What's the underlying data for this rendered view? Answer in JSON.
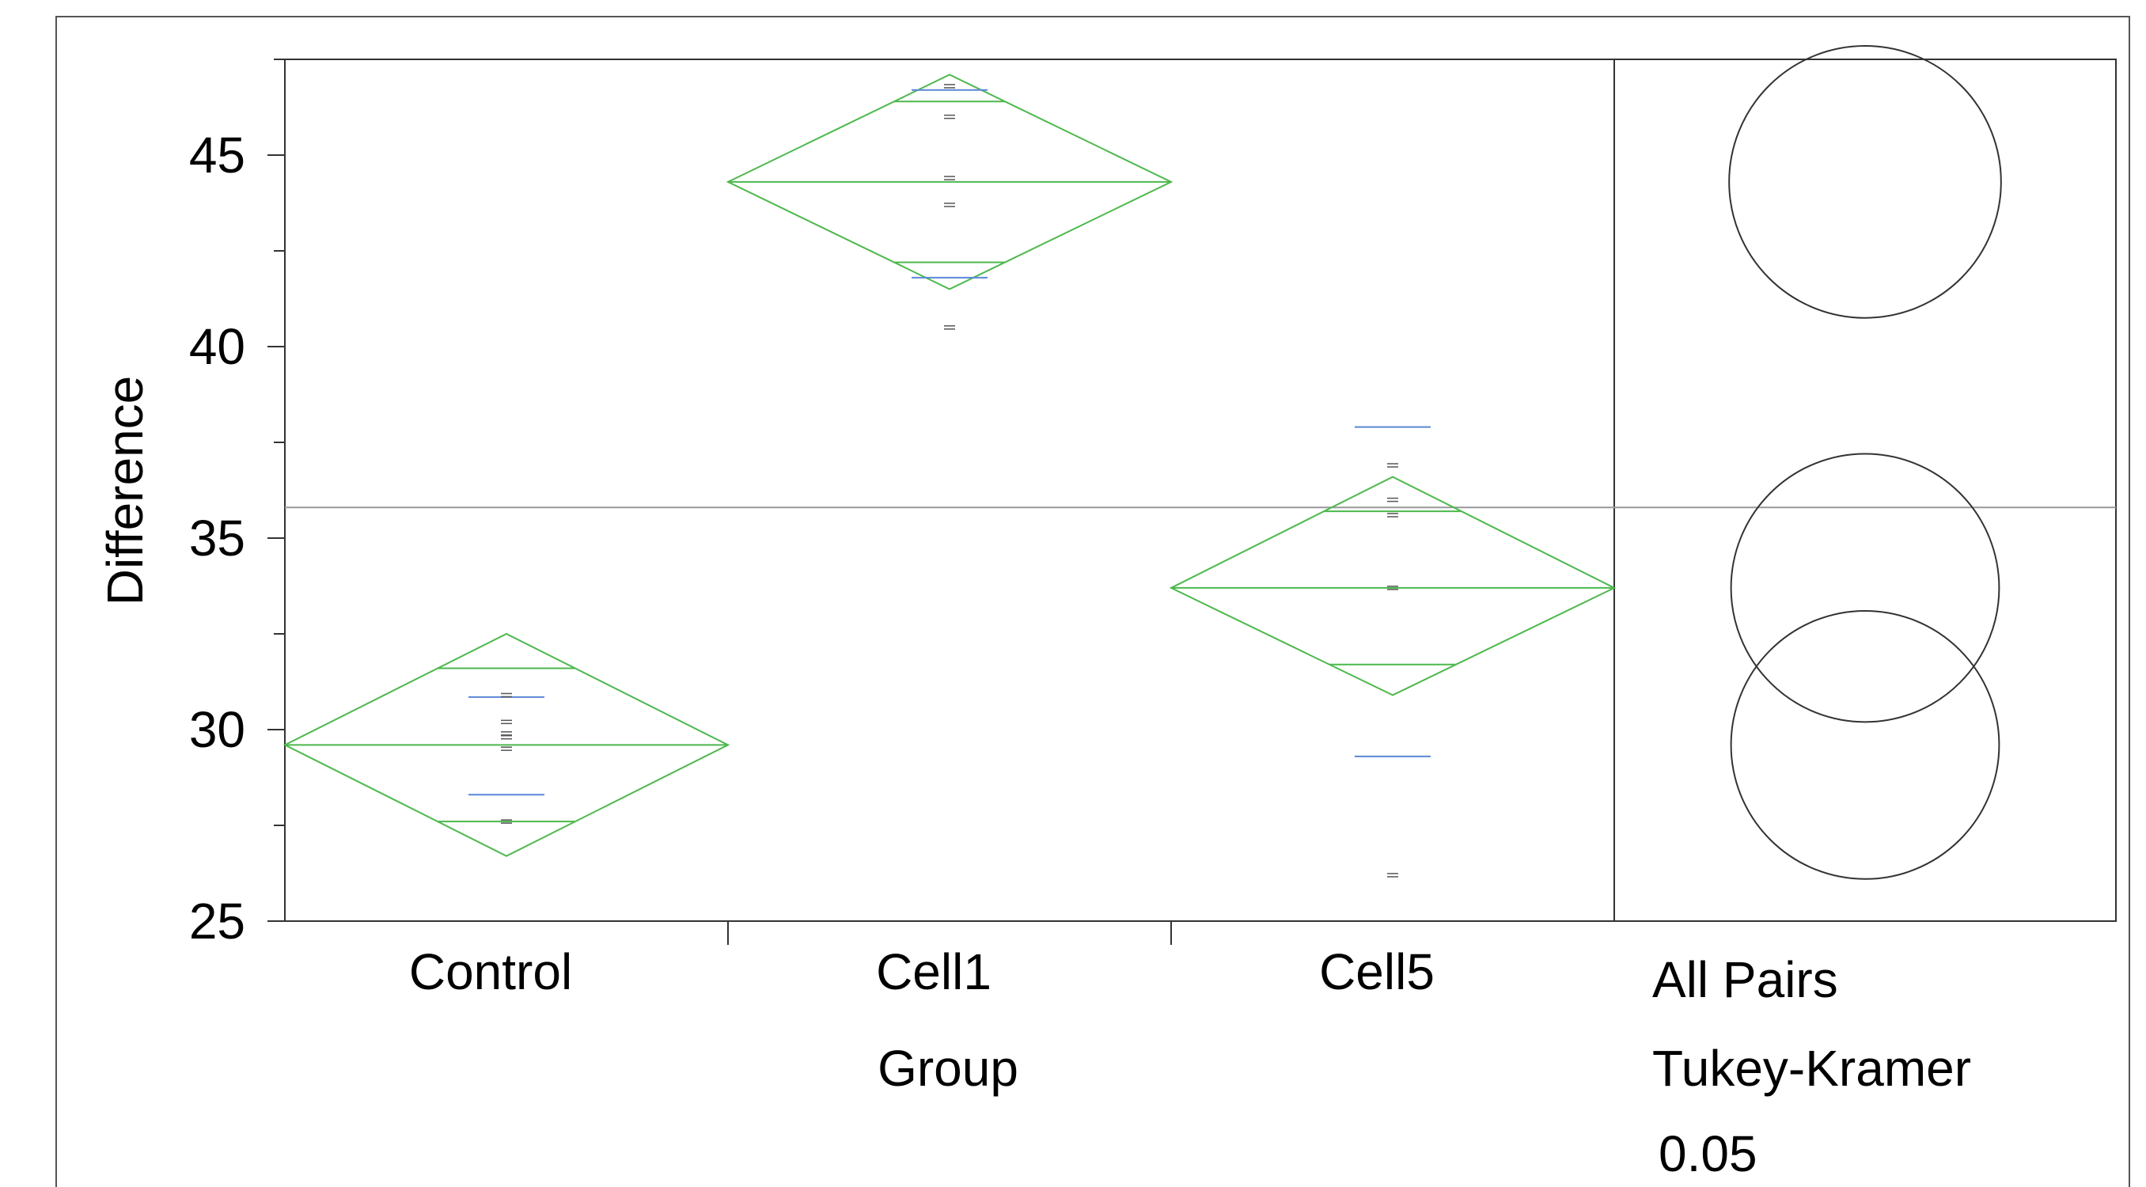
{
  "chart_data": {
    "type": "scatter",
    "subtype": "means-diamonds-oneway",
    "ylabel": "Difference",
    "xlabel": "Group",
    "ylim": [
      25,
      47.5
    ],
    "yticks": [
      25,
      30,
      35,
      40,
      45
    ],
    "grand_mean": 35.8,
    "grid": false,
    "colors": {
      "diamond": "#4CB84C",
      "sd_line": "#5B86D6",
      "points": "#555555",
      "frame": "#333333",
      "mean_line": "#999999"
    },
    "categories": [
      "Control",
      "Cell1",
      "Cell5"
    ],
    "groups": [
      {
        "name": "Control",
        "mean": 29.6,
        "ci": [
          26.7,
          32.5
        ],
        "overlap": [
          27.6,
          31.6
        ],
        "sd_marks": [
          28.3,
          30.85
        ],
        "points": [
          27.6,
          29.5,
          29.8,
          29.9,
          30.2,
          30.9
        ]
      },
      {
        "name": "Cell1",
        "mean": 44.3,
        "ci": [
          41.5,
          47.1
        ],
        "overlap": [
          42.2,
          46.4
        ],
        "sd_marks": [
          41.8,
          46.7
        ],
        "points": [
          40.5,
          43.7,
          44.4,
          46.0,
          46.8
        ]
      },
      {
        "name": "Cell5",
        "mean": 33.7,
        "ci": [
          30.9,
          36.6
        ],
        "overlap": [
          31.7,
          35.7
        ],
        "sd_marks": [
          29.3,
          37.9
        ],
        "points": [
          26.2,
          33.7,
          35.6,
          36.0,
          36.9
        ]
      }
    ],
    "comparison_circles": [
      {
        "group": "Cell1",
        "center": 44.3,
        "radius": 3.55
      },
      {
        "group": "Cell5",
        "center": 33.7,
        "radius": 3.5
      },
      {
        "group": "Control",
        "center": 29.6,
        "radius": 3.5
      }
    ],
    "comparison_labels": [
      "All Pairs",
      "Tukey-Kramer",
      "0.05"
    ]
  }
}
